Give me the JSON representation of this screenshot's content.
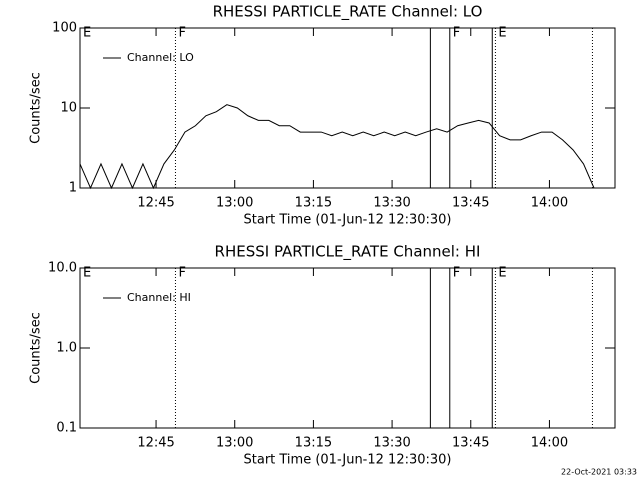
{
  "chart_data": [
    {
      "type": "line",
      "title": "RHESSI PARTICLE_RATE Channel: LO",
      "xlabel": "Start Time (01-Jun-12 12:30:30)",
      "ylabel": "Counts/sec",
      "xlim": [
        0,
        102
      ],
      "ylim": [
        1,
        100
      ],
      "log_y": true,
      "xticks": [
        {
          "value": 14.5,
          "label": "12:45"
        },
        {
          "value": 29.5,
          "label": "13:00"
        },
        {
          "value": 44.5,
          "label": "13:15"
        },
        {
          "value": 59.5,
          "label": "13:30"
        },
        {
          "value": 74.5,
          "label": "13:45"
        },
        {
          "value": 89.5,
          "label": "14:00"
        }
      ],
      "yticks": [
        1,
        10,
        100
      ],
      "legend": "upper left",
      "series": [
        {
          "name": "Channel: LO",
          "color": "#000000",
          "x": [
            0,
            2,
            4,
            6,
            8,
            10,
            12,
            14,
            16,
            18,
            20,
            22,
            24,
            26,
            28,
            30,
            32,
            34,
            36,
            38,
            40,
            42,
            44,
            46,
            48,
            50,
            52,
            54,
            56,
            58,
            60,
            62,
            64,
            66,
            68,
            70,
            72,
            74,
            76,
            78,
            80,
            82,
            84,
            86,
            88,
            90,
            92,
            94,
            96,
            98
          ],
          "values": [
            2,
            1,
            2,
            1,
            2,
            1,
            2,
            1,
            2,
            3,
            5,
            6,
            8,
            9,
            11,
            10,
            8,
            7,
            7,
            6,
            6,
            5,
            5,
            5,
            4.5,
            5,
            4.5,
            5,
            4.5,
            5,
            4.5,
            5,
            4.5,
            5,
            5.5,
            5,
            6,
            6.5,
            7,
            6.5,
            4.5,
            4,
            4,
            4.5,
            5,
            5,
            4,
            3,
            2,
            1
          ]
        }
      ],
      "vlines": [
        {
          "x": 18.2,
          "style": "dotted"
        },
        {
          "x": 66.8,
          "style": "solid"
        },
        {
          "x": 70.5,
          "style": "solid"
        },
        {
          "x": 78.6,
          "style": "solid"
        },
        {
          "x": 79.2,
          "style": "dotted"
        },
        {
          "x": 97.7,
          "style": "dotted"
        }
      ],
      "annotations": [
        {
          "text": "E",
          "x": 0
        },
        {
          "text": "F",
          "x": 18.2
        },
        {
          "text": "F",
          "x": 70.5
        },
        {
          "text": "E",
          "x": 79.2
        }
      ]
    },
    {
      "type": "line",
      "title": "RHESSI PARTICLE_RATE Channel: HI",
      "xlabel": "Start Time (01-Jun-12 12:30:30)",
      "ylabel": "Counts/sec",
      "xlim": [
        0,
        102
      ],
      "ylim": [
        0.1,
        10
      ],
      "log_y": true,
      "xticks": [
        {
          "value": 14.5,
          "label": "12:45"
        },
        {
          "value": 29.5,
          "label": "13:00"
        },
        {
          "value": 44.5,
          "label": "13:15"
        },
        {
          "value": 59.5,
          "label": "13:30"
        },
        {
          "value": 74.5,
          "label": "13:45"
        },
        {
          "value": 89.5,
          "label": "14:00"
        }
      ],
      "yticks": [
        0.1,
        {
          "value": 1,
          "label": "1.0"
        },
        {
          "value": 10,
          "label": "10.0"
        }
      ],
      "legend": "upper left",
      "series": [
        {
          "name": "Channel: HI",
          "color": "#000000",
          "x": [],
          "values": []
        }
      ],
      "vlines": [
        {
          "x": 18.2,
          "style": "dotted"
        },
        {
          "x": 66.8,
          "style": "solid"
        },
        {
          "x": 70.5,
          "style": "solid"
        },
        {
          "x": 78.6,
          "style": "solid"
        },
        {
          "x": 79.2,
          "style": "dotted"
        },
        {
          "x": 97.7,
          "style": "dotted"
        }
      ],
      "annotations": [
        {
          "text": "E",
          "x": 0
        },
        {
          "text": "F",
          "x": 18.2
        },
        {
          "text": "F",
          "x": 70.5
        },
        {
          "text": "E",
          "x": 79.2
        }
      ]
    }
  ],
  "footer": "22-Oct-2021 03:33"
}
